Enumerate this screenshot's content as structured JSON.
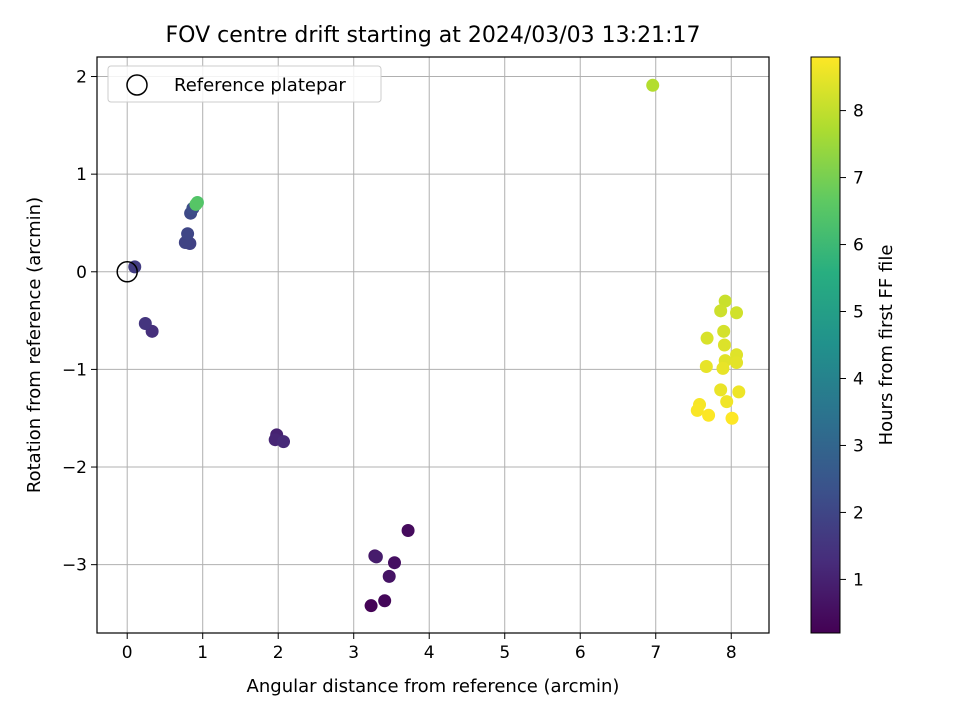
{
  "chart_data": {
    "type": "scatter",
    "title": "FOV centre drift starting at 2024/03/03 13:21:17",
    "xlabel": "Angular distance from reference (arcmin)",
    "ylabel": "Rotation from reference (arcmin)",
    "xlim": [
      -0.4,
      8.5
    ],
    "ylim": [
      -3.7,
      2.2
    ],
    "xticks": [
      0,
      1,
      2,
      3,
      4,
      5,
      6,
      7,
      8
    ],
    "yticks": [
      -3,
      -2,
      -1,
      0,
      1,
      2
    ],
    "xtick_labels": [
      "0",
      "1",
      "2",
      "3",
      "4",
      "5",
      "6",
      "7",
      "8"
    ],
    "ytick_labels": [
      "−3",
      "−2",
      "−1",
      "0",
      "1",
      "2"
    ],
    "grid": true,
    "legend": {
      "position": "top-left",
      "label": "Reference platepar",
      "marker": "open-circle"
    },
    "reference_point": {
      "x": 0,
      "y": 0
    },
    "colorbar": {
      "label": "Hours from first FF file",
      "cmap": "viridis",
      "range": [
        0.2,
        8.8
      ],
      "ticks": [
        1,
        2,
        3,
        4,
        5,
        6,
        7,
        8
      ],
      "tick_labels": [
        "1",
        "2",
        "3",
        "4",
        "5",
        "6",
        "7",
        "8"
      ]
    },
    "points": [
      {
        "x": 3.23,
        "y": -3.42,
        "h": 0.25
      },
      {
        "x": 3.41,
        "y": -3.37,
        "h": 0.35
      },
      {
        "x": 3.72,
        "y": -2.65,
        "h": 0.45
      },
      {
        "x": 3.54,
        "y": -2.98,
        "h": 0.55
      },
      {
        "x": 3.47,
        "y": -3.12,
        "h": 0.65
      },
      {
        "x": 3.28,
        "y": -2.91,
        "h": 0.75
      },
      {
        "x": 3.3,
        "y": -2.92,
        "h": 0.85
      },
      {
        "x": 1.98,
        "y": -1.67,
        "h": 1.0
      },
      {
        "x": 1.96,
        "y": -1.72,
        "h": 1.1
      },
      {
        "x": 2.07,
        "y": -1.74,
        "h": 1.2
      },
      {
        "x": 0.33,
        "y": -0.61,
        "h": 1.35
      },
      {
        "x": 0.24,
        "y": -0.53,
        "h": 1.5
      },
      {
        "x": 0.1,
        "y": 0.05,
        "h": 1.7
      },
      {
        "x": 0.83,
        "y": 0.29,
        "h": 1.85
      },
      {
        "x": 0.77,
        "y": 0.3,
        "h": 1.9
      },
      {
        "x": 0.8,
        "y": 0.39,
        "h": 2.0
      },
      {
        "x": 0.84,
        "y": 0.6,
        "h": 2.1
      },
      {
        "x": 0.87,
        "y": 0.65,
        "h": 2.2
      },
      {
        "x": 0.93,
        "y": 0.71,
        "h": 6.4
      },
      {
        "x": 0.91,
        "y": 0.69,
        "h": 6.5
      },
      {
        "x": 6.96,
        "y": 1.91,
        "h": 7.8
      },
      {
        "x": 7.92,
        "y": -0.3,
        "h": 8.1
      },
      {
        "x": 7.86,
        "y": -0.4,
        "h": 8.15
      },
      {
        "x": 8.07,
        "y": -0.42,
        "h": 8.2
      },
      {
        "x": 7.9,
        "y": -0.61,
        "h": 8.25
      },
      {
        "x": 7.68,
        "y": -0.68,
        "h": 8.3
      },
      {
        "x": 7.91,
        "y": -0.75,
        "h": 8.35
      },
      {
        "x": 8.07,
        "y": -0.85,
        "h": 8.4
      },
      {
        "x": 7.92,
        "y": -0.91,
        "h": 8.42
      },
      {
        "x": 8.07,
        "y": -0.93,
        "h": 8.45
      },
      {
        "x": 7.67,
        "y": -0.97,
        "h": 8.5
      },
      {
        "x": 7.89,
        "y": -0.99,
        "h": 8.52
      },
      {
        "x": 7.86,
        "y": -1.21,
        "h": 8.55
      },
      {
        "x": 8.1,
        "y": -1.23,
        "h": 8.6
      },
      {
        "x": 7.94,
        "y": -1.33,
        "h": 8.62
      },
      {
        "x": 7.58,
        "y": -1.36,
        "h": 8.7
      },
      {
        "x": 7.55,
        "y": -1.42,
        "h": 8.75
      },
      {
        "x": 7.7,
        "y": -1.47,
        "h": 8.78
      },
      {
        "x": 8.01,
        "y": -1.5,
        "h": 8.8
      }
    ]
  }
}
